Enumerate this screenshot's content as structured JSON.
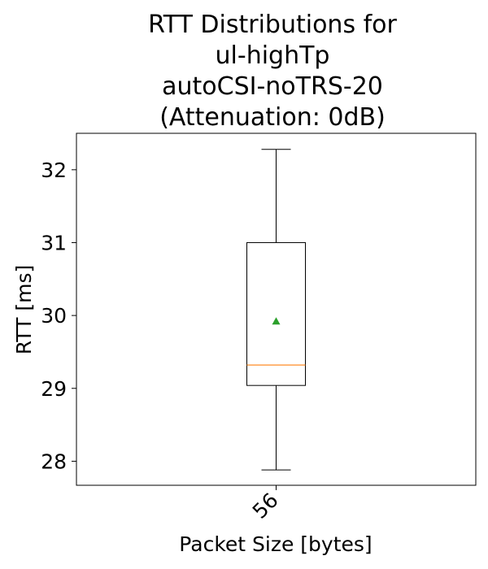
{
  "chart_data": {
    "type": "box",
    "title_lines": [
      "RTT Distributions for",
      "ul-highTp",
      "autoCSI-noTRS-20",
      "(Attenuation: 0dB)"
    ],
    "xlabel": "Packet Size [bytes]",
    "ylabel": "RTT [ms]",
    "categories": [
      "56"
    ],
    "ylim": [
      27.67,
      32.5
    ],
    "yticks": [
      28,
      29,
      30,
      31,
      32
    ],
    "boxes": [
      {
        "category": "56",
        "whisker_low": 27.88,
        "q1": 29.04,
        "median": 29.32,
        "q3": 31.0,
        "whisker_high": 32.28,
        "mean": 29.92
      }
    ],
    "colors": {
      "box": "#000000",
      "median": "#ff7f0e",
      "mean": "#2ca02c"
    },
    "grid": false,
    "legend": "none"
  }
}
